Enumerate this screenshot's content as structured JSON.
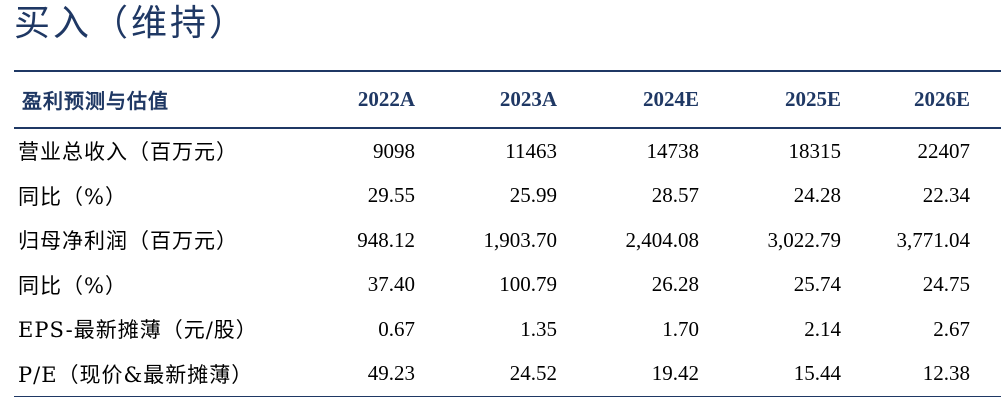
{
  "rating": "买入（维持）",
  "table": {
    "header": {
      "label": "盈利预测与估值",
      "columns": [
        "2022A",
        "2023A",
        "2024E",
        "2025E",
        "2026E"
      ]
    },
    "rows": [
      {
        "label": "营业总收入（百万元）",
        "values": [
          "9098",
          "11463",
          "14738",
          "18315",
          "22407"
        ]
      },
      {
        "label": "同比（%）",
        "values": [
          "29.55",
          "25.99",
          "28.57",
          "24.28",
          "22.34"
        ]
      },
      {
        "label": "归母净利润（百万元）",
        "values": [
          "948.12",
          "1,903.70",
          "2,404.08",
          "3,022.79",
          "3,771.04"
        ]
      },
      {
        "label": "同比（%）",
        "values": [
          "37.40",
          "100.79",
          "26.28",
          "25.74",
          "24.75"
        ]
      },
      {
        "label": "EPS-最新摊薄（元/股）",
        "values": [
          "0.67",
          "1.35",
          "1.70",
          "2.14",
          "2.67"
        ]
      },
      {
        "label": "P/E（现价&最新摊薄）",
        "values": [
          "49.23",
          "24.52",
          "19.42",
          "15.44",
          "12.38"
        ]
      }
    ]
  }
}
